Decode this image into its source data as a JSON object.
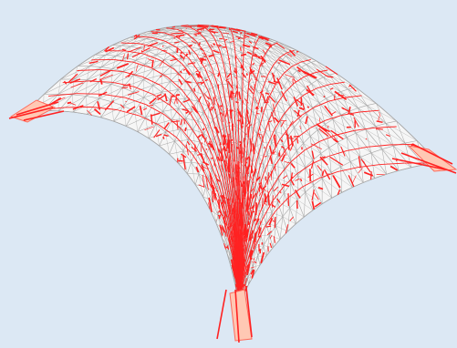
{
  "scene": {
    "subject": "shell-structure",
    "colors": {
      "background": "#dce8f4",
      "surface_fill": "#f6f6f6",
      "mesh_edge": "#a6a6a6",
      "stress_line": "#ff2222",
      "support_fill": "#ffc8b4",
      "support_edge": "#ff6a5a"
    },
    "supports": [
      "left",
      "right",
      "front"
    ]
  }
}
